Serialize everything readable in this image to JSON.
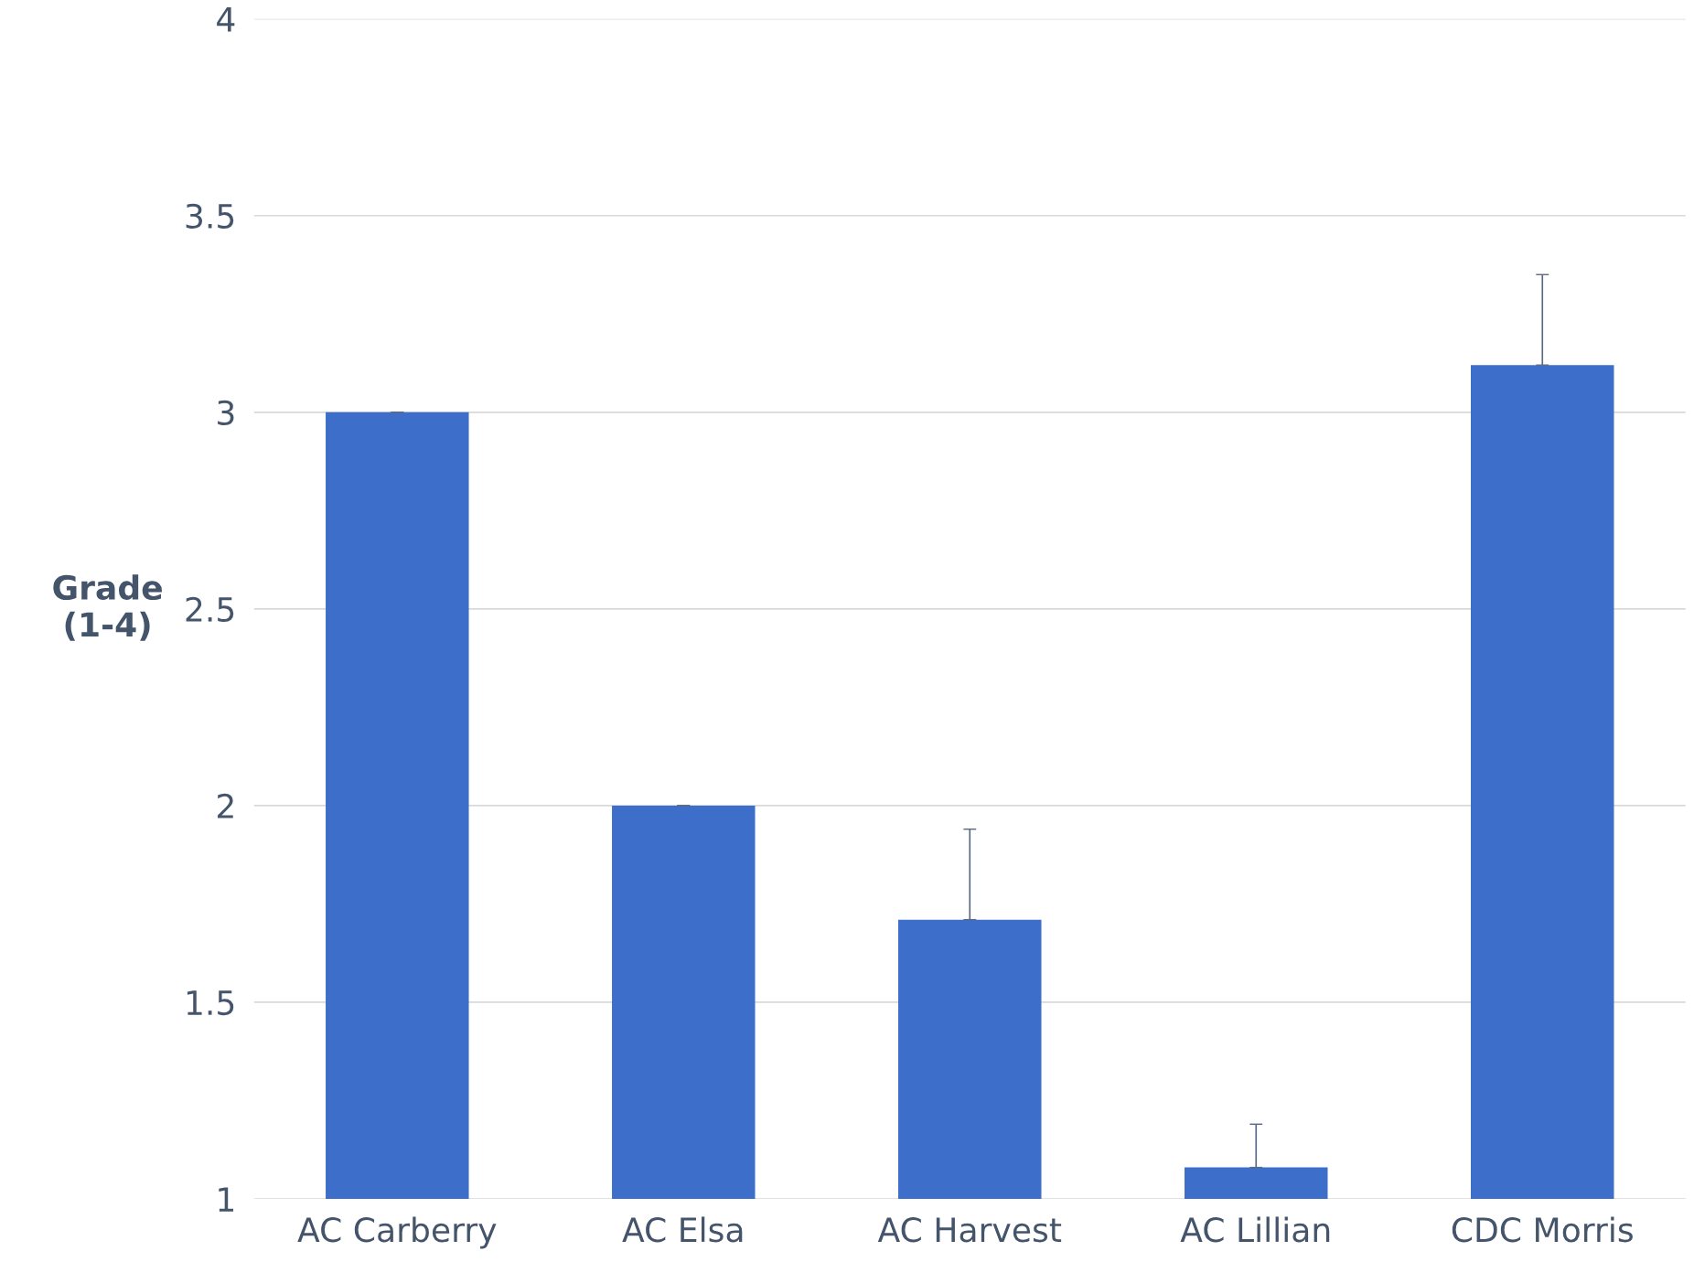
{
  "chart_data": {
    "type": "bar",
    "ylabel": "Grade\n(1-4)",
    "categories": [
      "AC Carberry",
      "AC Elsa",
      "AC Harvest",
      "AC Lillian",
      "CDC Morris"
    ],
    "values": [
      3.0,
      2.0,
      1.71,
      1.08,
      3.12
    ],
    "errors": [
      [
        3.0,
        3.0
      ],
      [
        2.0,
        2.0
      ],
      [
        1.71,
        1.94
      ],
      [
        1.08,
        1.19
      ],
      [
        3.12,
        3.35
      ]
    ],
    "color": "#3d6fca",
    "ylim": [
      1,
      4
    ],
    "yticks": [
      1,
      1.5,
      2,
      2.5,
      3,
      3.5,
      4
    ],
    "grid": "y",
    "legend": false
  }
}
